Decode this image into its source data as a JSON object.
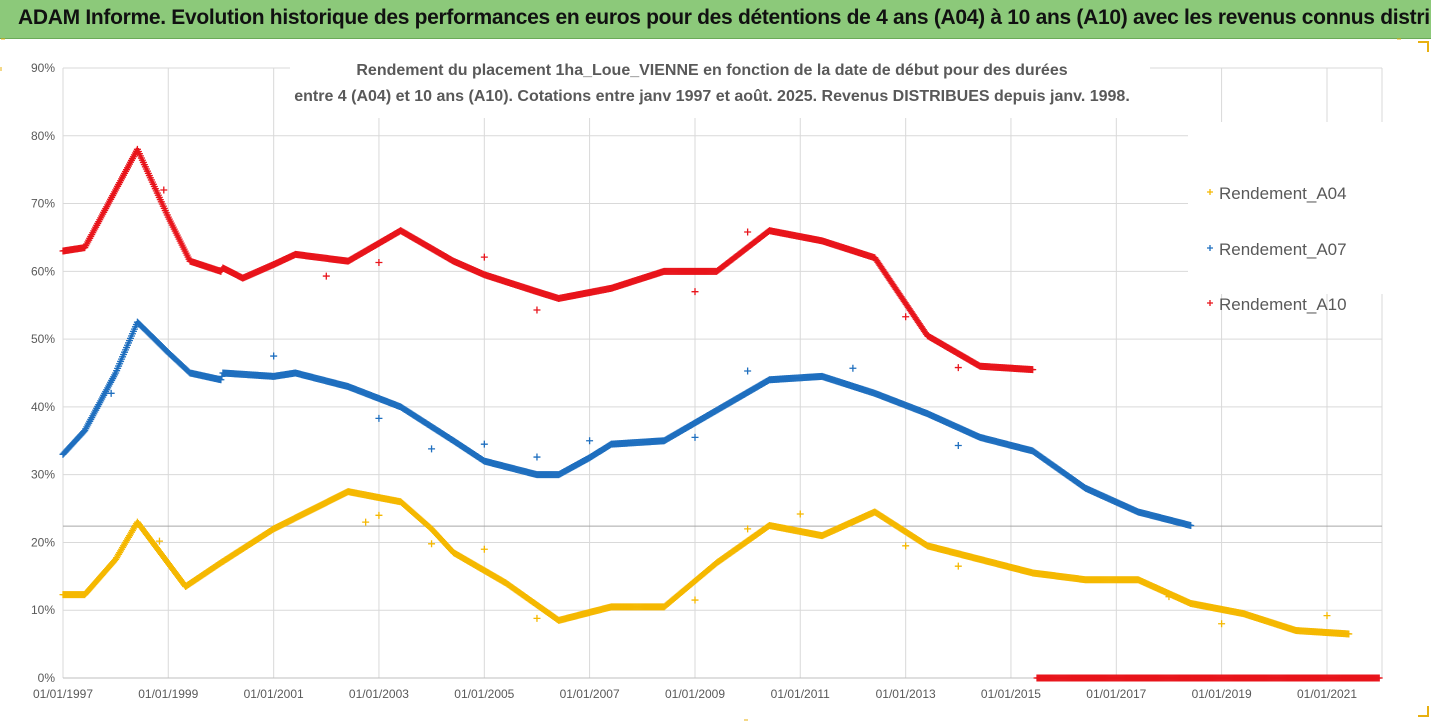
{
  "header": {
    "title": "ADAM Informe. Evolution historique des performances en euros pour des détentions de 4 ans (A04) à 10 ans (A10) avec les revenus connus distribués"
  },
  "colors": {
    "header_bg": "#8cc97a",
    "A04": "#f5b800",
    "A07": "#1f6fbf",
    "A10": "#e8141b",
    "grid": "#d9d9d9"
  },
  "chart_data": {
    "type": "scatter",
    "title_line1": "Rendement du placement 1ha_Loue_VIENNE en fonction de la date de début pour des durées",
    "title_line2": "entre 4 (A04) et 10 ans (A10). Cotations entre janv 1997 et août. 2025. Revenus DISTRIBUES depuis janv. 1998.",
    "xlabel": "",
    "ylabel": "",
    "ylim": [
      0,
      90
    ],
    "y_ticks": [
      "0%",
      "10%",
      "20%",
      "30%",
      "40%",
      "50%",
      "60%",
      "70%",
      "80%",
      "90%"
    ],
    "x_range": [
      "1997-01-01",
      "2022-01-01"
    ],
    "x_ticks": [
      "01/01/1997",
      "01/01/1999",
      "01/01/2001",
      "01/01/2003",
      "01/01/2005",
      "01/01/2007",
      "01/01/2009",
      "01/01/2011",
      "01/01/2013",
      "01/01/2015",
      "01/01/2017",
      "01/01/2019",
      "01/01/2021"
    ],
    "grid": true,
    "legend_position": "right",
    "marker": "+",
    "series": [
      {
        "name": "Rendement_A04",
        "color_key": "A04",
        "points": [
          [
            "1997-01-01",
            12.3
          ],
          [
            "1997-06-01",
            12.3
          ],
          [
            "1998-01-01",
            17.5
          ],
          [
            "1998-06-01",
            23.0
          ],
          [
            "1999-05-01",
            13.5
          ],
          [
            "2000-01-01",
            17.0
          ],
          [
            "2001-01-01",
            22.0
          ],
          [
            "2002-06-01",
            27.5
          ],
          [
            "2003-06-01",
            26.0
          ],
          [
            "2004-01-01",
            22.0
          ],
          [
            "2004-06-01",
            18.5
          ],
          [
            "2005-06-01",
            14.0
          ],
          [
            "2006-06-01",
            8.5
          ],
          [
            "2007-06-01",
            10.5
          ],
          [
            "2008-06-01",
            10.5
          ],
          [
            "2009-06-01",
            17.0
          ],
          [
            "2010-06-01",
            22.5
          ],
          [
            "2011-06-01",
            21.0
          ],
          [
            "2012-06-01",
            24.5
          ],
          [
            "2013-06-01",
            19.5
          ],
          [
            "2014-06-01",
            17.5
          ],
          [
            "2015-06-01",
            15.5
          ],
          [
            "2016-06-01",
            14.5
          ],
          [
            "2017-06-01",
            14.5
          ],
          [
            "2018-06-01",
            11.0
          ],
          [
            "2019-06-01",
            9.5
          ],
          [
            "2020-06-01",
            7.0
          ],
          [
            "2021-06-01",
            6.5
          ]
        ],
        "outliers": [
          [
            "1998-11-01",
            20.2
          ],
          [
            "2002-10-01",
            23.0
          ],
          [
            "2003-01-01",
            24.0
          ],
          [
            "2004-01-01",
            19.8
          ],
          [
            "2005-01-01",
            19.0
          ],
          [
            "2006-01-01",
            8.8
          ],
          [
            "2009-01-01",
            11.5
          ],
          [
            "2010-01-01",
            22.0
          ],
          [
            "2011-01-01",
            24.2
          ],
          [
            "2013-01-01",
            19.5
          ],
          [
            "2014-01-01",
            16.5
          ],
          [
            "2018-01-01",
            12.0
          ],
          [
            "2019-01-01",
            8.0
          ],
          [
            "2021-01-01",
            9.2
          ]
        ]
      },
      {
        "name": "Rendement_A07",
        "color_key": "A07",
        "points": [
          [
            "1997-01-01",
            33.0
          ],
          [
            "1997-06-01",
            36.5
          ],
          [
            "1998-01-01",
            45.0
          ],
          [
            "1998-06-01",
            52.5
          ],
          [
            "1999-01-01",
            48.0
          ],
          [
            "1999-06-01",
            45.0
          ],
          [
            "2000-01-01",
            44.0
          ],
          [
            "2000-01-15",
            45.0
          ],
          [
            "2001-01-01",
            44.5
          ],
          [
            "2001-06-01",
            45.0
          ],
          [
            "2002-06-01",
            43.0
          ],
          [
            "2003-06-01",
            40.0
          ],
          [
            "2004-06-01",
            35.0
          ],
          [
            "2005-01-01",
            32.0
          ],
          [
            "2006-01-01",
            30.0
          ],
          [
            "2006-06-01",
            30.0
          ],
          [
            "2007-01-01",
            32.5
          ],
          [
            "2007-06-01",
            34.5
          ],
          [
            "2008-06-01",
            35.0
          ],
          [
            "2009-06-01",
            39.5
          ],
          [
            "2010-06-01",
            44.0
          ],
          [
            "2011-06-01",
            44.5
          ],
          [
            "2012-06-01",
            42.0
          ],
          [
            "2013-06-01",
            39.0
          ],
          [
            "2014-06-01",
            35.5
          ],
          [
            "2015-06-01",
            33.5
          ],
          [
            "2016-06-01",
            28.0
          ],
          [
            "2017-06-01",
            24.5
          ],
          [
            "2018-06-01",
            22.5
          ]
        ],
        "outliers": [
          [
            "1997-12-01",
            42.0
          ],
          [
            "2001-01-01",
            47.5
          ],
          [
            "2003-01-01",
            38.3
          ],
          [
            "2004-01-01",
            33.8
          ],
          [
            "2005-01-01",
            34.5
          ],
          [
            "2006-01-01",
            32.6
          ],
          [
            "2007-01-01",
            35.0
          ],
          [
            "2009-01-01",
            35.5
          ],
          [
            "2010-01-01",
            45.3
          ],
          [
            "2012-01-01",
            45.7
          ],
          [
            "2014-01-01",
            34.3
          ]
        ]
      },
      {
        "name": "Rendement_A10",
        "color_key": "A10",
        "points": [
          [
            "1997-01-01",
            63.0
          ],
          [
            "1997-06-01",
            63.5
          ],
          [
            "1998-01-01",
            72.0
          ],
          [
            "1998-06-01",
            78.0
          ],
          [
            "1999-01-01",
            68.0
          ],
          [
            "1999-06-01",
            61.5
          ],
          [
            "2000-01-01",
            60.0
          ],
          [
            "2000-01-15",
            60.5
          ],
          [
            "2000-06-01",
            59.0
          ],
          [
            "2001-01-01",
            61.0
          ],
          [
            "2001-06-01",
            62.5
          ],
          [
            "2002-06-01",
            61.5
          ],
          [
            "2003-06-01",
            66.0
          ],
          [
            "2004-06-01",
            61.5
          ],
          [
            "2005-01-01",
            59.5
          ],
          [
            "2006-01-01",
            57.0
          ],
          [
            "2006-06-01",
            56.0
          ],
          [
            "2007-06-01",
            57.5
          ],
          [
            "2008-06-01",
            60.0
          ],
          [
            "2009-06-01",
            60.0
          ],
          [
            "2010-06-01",
            66.0
          ],
          [
            "2011-06-01",
            64.5
          ],
          [
            "2012-06-01",
            62.0
          ],
          [
            "2013-06-01",
            50.5
          ],
          [
            "2014-06-01",
            46.0
          ],
          [
            "2015-06-01",
            45.5
          ]
        ],
        "outliers": [
          [
            "1998-12-01",
            72.0
          ],
          [
            "2002-01-01",
            59.3
          ],
          [
            "2003-01-01",
            61.3
          ],
          [
            "2005-01-01",
            62.1
          ],
          [
            "2006-01-01",
            54.3
          ],
          [
            "2009-01-01",
            57.0
          ],
          [
            "2010-01-01",
            65.8
          ],
          [
            "2013-01-01",
            53.3
          ],
          [
            "2014-01-01",
            45.8
          ]
        ],
        "zero_range": [
          "2015-07-01",
          "2021-12-31"
        ]
      }
    ]
  }
}
